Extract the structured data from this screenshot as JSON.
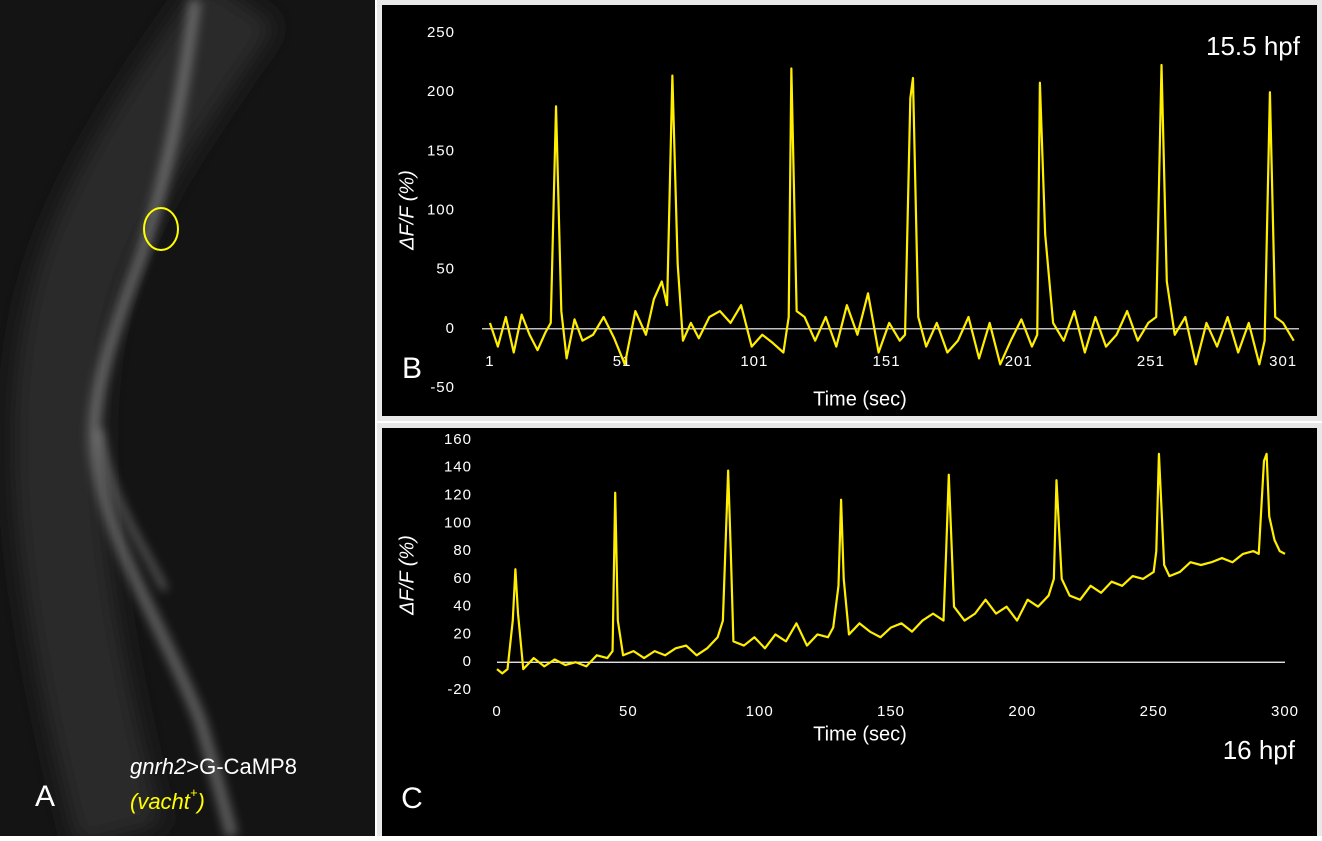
{
  "panel_a": {
    "label": "A",
    "gene": "gnrh2",
    "construct": ">G-CaMP8",
    "marker": "(vacht",
    "marker_sup": "+",
    "marker_close": ")",
    "roi_color": "#ffff00"
  },
  "chart_data": [
    {
      "type": "line",
      "panel_label": "B",
      "annotation": "15.5 hpf",
      "x_label": "Time (sec)",
      "y_label": "ΔF/F (%)",
      "xlim": [
        -2,
        307
      ],
      "xticks": [
        1,
        51,
        101,
        151,
        201,
        251,
        301
      ],
      "ylim": [
        -50,
        250
      ],
      "yticks": [
        -50,
        0,
        50,
        100,
        150,
        200,
        250
      ],
      "zero_line": true,
      "x": [
        1,
        4,
        7,
        10,
        13,
        16,
        19,
        22,
        24,
        26,
        28,
        30,
        33,
        36,
        40,
        44,
        48,
        52,
        56,
        60,
        63,
        66,
        68,
        70,
        72,
        74,
        77,
        80,
        84,
        88,
        92,
        96,
        100,
        104,
        108,
        112,
        114,
        115,
        117,
        120,
        124,
        128,
        132,
        136,
        140,
        144,
        148,
        152,
        156,
        158,
        160,
        161,
        163,
        166,
        170,
        174,
        178,
        182,
        186,
        190,
        194,
        198,
        202,
        206,
        208,
        209,
        211,
        214,
        218,
        222,
        226,
        230,
        234,
        238,
        242,
        246,
        250,
        253,
        255,
        257,
        260,
        264,
        268,
        272,
        276,
        280,
        284,
        288,
        292,
        294,
        296,
        298,
        301,
        305
      ],
      "series": [
        {
          "name": "15.5 hpf",
          "color": "#ffee00",
          "values": [
            5,
            -15,
            10,
            -20,
            12,
            -5,
            -18,
            -3,
            5,
            188,
            15,
            -25,
            8,
            -10,
            -5,
            10,
            -8,
            -30,
            15,
            -5,
            25,
            40,
            20,
            214,
            55,
            -10,
            5,
            -8,
            10,
            15,
            5,
            20,
            -15,
            -5,
            -12,
            -20,
            10,
            220,
            15,
            10,
            -10,
            10,
            -15,
            20,
            -5,
            30,
            -20,
            5,
            -10,
            -5,
            195,
            212,
            10,
            -15,
            5,
            -20,
            -10,
            10,
            -25,
            5,
            -30,
            -10,
            8,
            -15,
            -5,
            208,
            80,
            5,
            -10,
            15,
            -20,
            10,
            -15,
            -5,
            15,
            -10,
            5,
            10,
            223,
            40,
            -5,
            10,
            -30,
            5,
            -15,
            10,
            -20,
            5,
            -30,
            -10,
            200,
            10,
            5,
            -10
          ]
        }
      ]
    },
    {
      "type": "line",
      "panel_label": "C",
      "annotation": "16 hpf",
      "x_label": "Time (sec)",
      "y_label": "ΔF/F (%)",
      "xlim": [
        0,
        300
      ],
      "xticks": [
        0,
        50,
        100,
        150,
        200,
        250,
        300
      ],
      "ylim": [
        -20,
        160
      ],
      "yticks": [
        -20,
        0,
        20,
        40,
        60,
        80,
        100,
        120,
        140,
        160
      ],
      "zero_line": true,
      "x": [
        0,
        2,
        4,
        6,
        7,
        8,
        10,
        14,
        18,
        22,
        26,
        30,
        34,
        38,
        42,
        44,
        45,
        46,
        48,
        52,
        56,
        60,
        64,
        68,
        72,
        76,
        80,
        84,
        86,
        88,
        89,
        90,
        94,
        98,
        102,
        106,
        110,
        114,
        118,
        122,
        126,
        128,
        130,
        131,
        132,
        134,
        138,
        142,
        146,
        150,
        154,
        158,
        162,
        166,
        170,
        171,
        172,
        174,
        178,
        182,
        186,
        190,
        194,
        198,
        202,
        206,
        210,
        212,
        213,
        215,
        218,
        222,
        226,
        230,
        234,
        238,
        242,
        246,
        250,
        251,
        252,
        254,
        256,
        260,
        264,
        268,
        272,
        276,
        280,
        284,
        288,
        290,
        292,
        293,
        294,
        296,
        298,
        300
      ],
      "series": [
        {
          "name": "16 hpf",
          "color": "#ffee00",
          "values": [
            -5,
            -8,
            -5,
            30,
            67,
            35,
            -5,
            3,
            -3,
            2,
            -2,
            0,
            -3,
            5,
            3,
            8,
            122,
            30,
            5,
            8,
            3,
            8,
            5,
            10,
            12,
            5,
            10,
            18,
            30,
            138,
            80,
            15,
            12,
            18,
            10,
            20,
            15,
            28,
            12,
            20,
            18,
            25,
            55,
            117,
            60,
            20,
            28,
            22,
            18,
            25,
            28,
            22,
            30,
            35,
            30,
            80,
            135,
            40,
            30,
            35,
            45,
            35,
            40,
            30,
            45,
            40,
            48,
            60,
            131,
            60,
            48,
            45,
            55,
            50,
            58,
            55,
            62,
            60,
            65,
            80,
            150,
            70,
            62,
            65,
            72,
            70,
            72,
            75,
            72,
            78,
            80,
            78,
            145,
            150,
            105,
            88,
            80,
            78
          ]
        }
      ]
    }
  ]
}
